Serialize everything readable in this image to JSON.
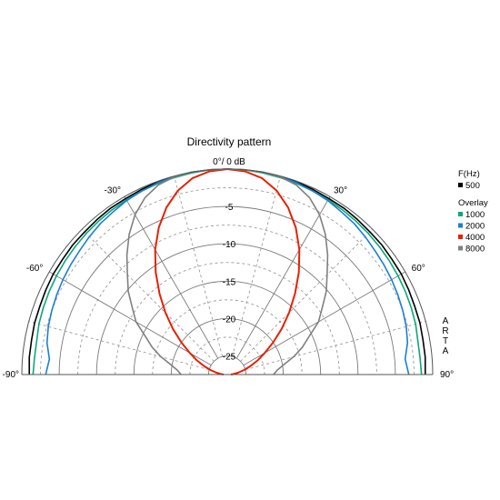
{
  "chart_data": {
    "type": "line",
    "title": "Directivity pattern",
    "center_label": "0°/ 0 dB",
    "radial_axis": {
      "ticks": [
        -5,
        -10,
        -15,
        -20,
        -25
      ],
      "range": [
        -27.5,
        0
      ],
      "unit": "dB"
    },
    "angular_axis": {
      "range": [
        -90,
        90
      ],
      "labels": [
        {
          "angle": -90,
          "text": "-90°"
        },
        {
          "angle": -60,
          "text": "-60°"
        },
        {
          "angle": -30,
          "text": "-30°"
        },
        {
          "angle": 30,
          "text": "30°"
        },
        {
          "angle": 60,
          "text": "60°"
        },
        {
          "angle": 90,
          "text": "90°"
        }
      ]
    },
    "grid": true,
    "legend": {
      "placement": "right",
      "header": "F(Hz)",
      "overlay_label": "Overlay"
    },
    "watermark": "ARTA",
    "series": [
      {
        "name": "500",
        "color": "#000000",
        "angles": [
          -90,
          -85,
          -80,
          -75,
          -70,
          -65,
          -60,
          -55,
          -50,
          -45,
          -40,
          -35,
          -30,
          -25,
          -20,
          -15,
          -10,
          -5,
          0,
          5,
          10,
          15,
          20,
          25,
          30,
          35,
          40,
          45,
          50,
          55,
          60,
          65,
          70,
          75,
          80,
          85,
          90
        ],
        "values": [
          -1.0,
          -0.9,
          -0.9,
          -0.8,
          -0.8,
          -0.7,
          -0.6,
          -0.6,
          -0.5,
          -0.5,
          -0.4,
          -0.3,
          -0.3,
          -0.2,
          -0.1,
          -0.1,
          0,
          0,
          0,
          0,
          0,
          -0.1,
          -0.1,
          -0.2,
          -0.3,
          -0.3,
          -0.4,
          -0.5,
          -0.5,
          -0.6,
          -0.6,
          -0.7,
          -0.8,
          -0.8,
          -0.9,
          -0.9,
          -1.0
        ]
      },
      {
        "name": "1000",
        "color": "#0aa87a",
        "angles": [
          -90,
          -85,
          -80,
          -75,
          -70,
          -65,
          -60,
          -55,
          -50,
          -45,
          -40,
          -35,
          -30,
          -25,
          -20,
          -15,
          -10,
          -5,
          0,
          5,
          10,
          15,
          20,
          25,
          30,
          35,
          40,
          45,
          50,
          55,
          60,
          65,
          70,
          75,
          80,
          85,
          90
        ],
        "values": [
          -1.5,
          -1.6,
          -1.6,
          -1.4,
          -1.3,
          -1.2,
          -1.1,
          -1.0,
          -0.9,
          -0.8,
          -0.7,
          -0.6,
          -0.5,
          -0.4,
          -0.3,
          -0.2,
          -0.1,
          0,
          0,
          0,
          -0.1,
          -0.2,
          -0.3,
          -0.4,
          -0.5,
          -0.6,
          -0.7,
          -0.8,
          -0.9,
          -1.0,
          -1.1,
          -1.2,
          -1.3,
          -1.4,
          -1.6,
          -1.6,
          -1.5
        ]
      },
      {
        "name": "2000",
        "color": "#1a7fd4",
        "angles": [
          -90,
          -85,
          -80,
          -75,
          -70,
          -65,
          -60,
          -55,
          -50,
          -45,
          -40,
          -35,
          -30,
          -25,
          -20,
          -15,
          -10,
          -5,
          0,
          5,
          10,
          15,
          20,
          25,
          30,
          35,
          40,
          45,
          50,
          55,
          60,
          65,
          70,
          75,
          80,
          85,
          90
        ],
        "values": [
          -3.2,
          -3.6,
          -3.0,
          -2.7,
          -2.5,
          -2.3,
          -2.1,
          -1.9,
          -1.7,
          -1.4,
          -1.1,
          -0.9,
          -0.6,
          -0.4,
          -0.2,
          -0.1,
          0,
          0,
          0,
          0,
          0,
          -0.1,
          -0.2,
          -0.4,
          -0.6,
          -0.9,
          -1.1,
          -1.4,
          -1.7,
          -1.9,
          -2.1,
          -2.3,
          -2.5,
          -2.7,
          -3.0,
          -3.6,
          -3.2
        ]
      },
      {
        "name": "4000",
        "color": "#e82000",
        "angles": [
          -90,
          -85,
          -80,
          -75,
          -70,
          -65,
          -60,
          -55,
          -50,
          -45,
          -40,
          -35,
          -30,
          -25,
          -20,
          -15,
          -10,
          -5,
          0,
          5,
          10,
          15,
          20,
          25,
          30,
          35,
          40,
          45,
          50,
          55,
          60,
          65,
          70,
          75,
          80,
          85,
          90
        ],
        "values": [
          -27.0,
          -26.6,
          -26.0,
          -25.2,
          -24.2,
          -23.0,
          -21.7,
          -20.0,
          -18.0,
          -15.8,
          -13.4,
          -10.8,
          -8.2,
          -5.8,
          -3.7,
          -2.0,
          -0.8,
          -0.2,
          0,
          -0.2,
          -0.8,
          -2.0,
          -3.7,
          -5.8,
          -8.2,
          -10.8,
          -13.4,
          -15.8,
          -18.0,
          -20.0,
          -21.7,
          -23.0,
          -24.2,
          -25.2,
          -26.0,
          -26.6,
          -27.0
        ]
      },
      {
        "name": "8000",
        "color": "#808080",
        "angles": [
          -90,
          -85,
          -80,
          -75,
          -70,
          -65,
          -60,
          -55,
          -50,
          -45,
          -40,
          -35,
          -30,
          -25,
          -20,
          -15,
          -10,
          -5,
          0,
          5,
          10,
          15,
          20,
          25,
          30,
          35,
          40,
          45,
          50,
          55,
          60,
          65,
          70,
          75,
          80,
          85,
          90
        ],
        "values": [
          -21.3,
          -20.8,
          -19.8,
          -18.3,
          -16.8,
          -15.4,
          -13.4,
          -12.0,
          -10.2,
          -8.6,
          -6.6,
          -4.6,
          -2.8,
          -1.4,
          -0.5,
          -0.1,
          0,
          0,
          0,
          0,
          0,
          -0.1,
          -0.5,
          -1.4,
          -2.8,
          -4.6,
          -6.6,
          -8.6,
          -10.2,
          -12.0,
          -13.4,
          -15.4,
          -16.8,
          -18.3,
          -19.8,
          -20.8,
          -21.3
        ]
      }
    ]
  }
}
